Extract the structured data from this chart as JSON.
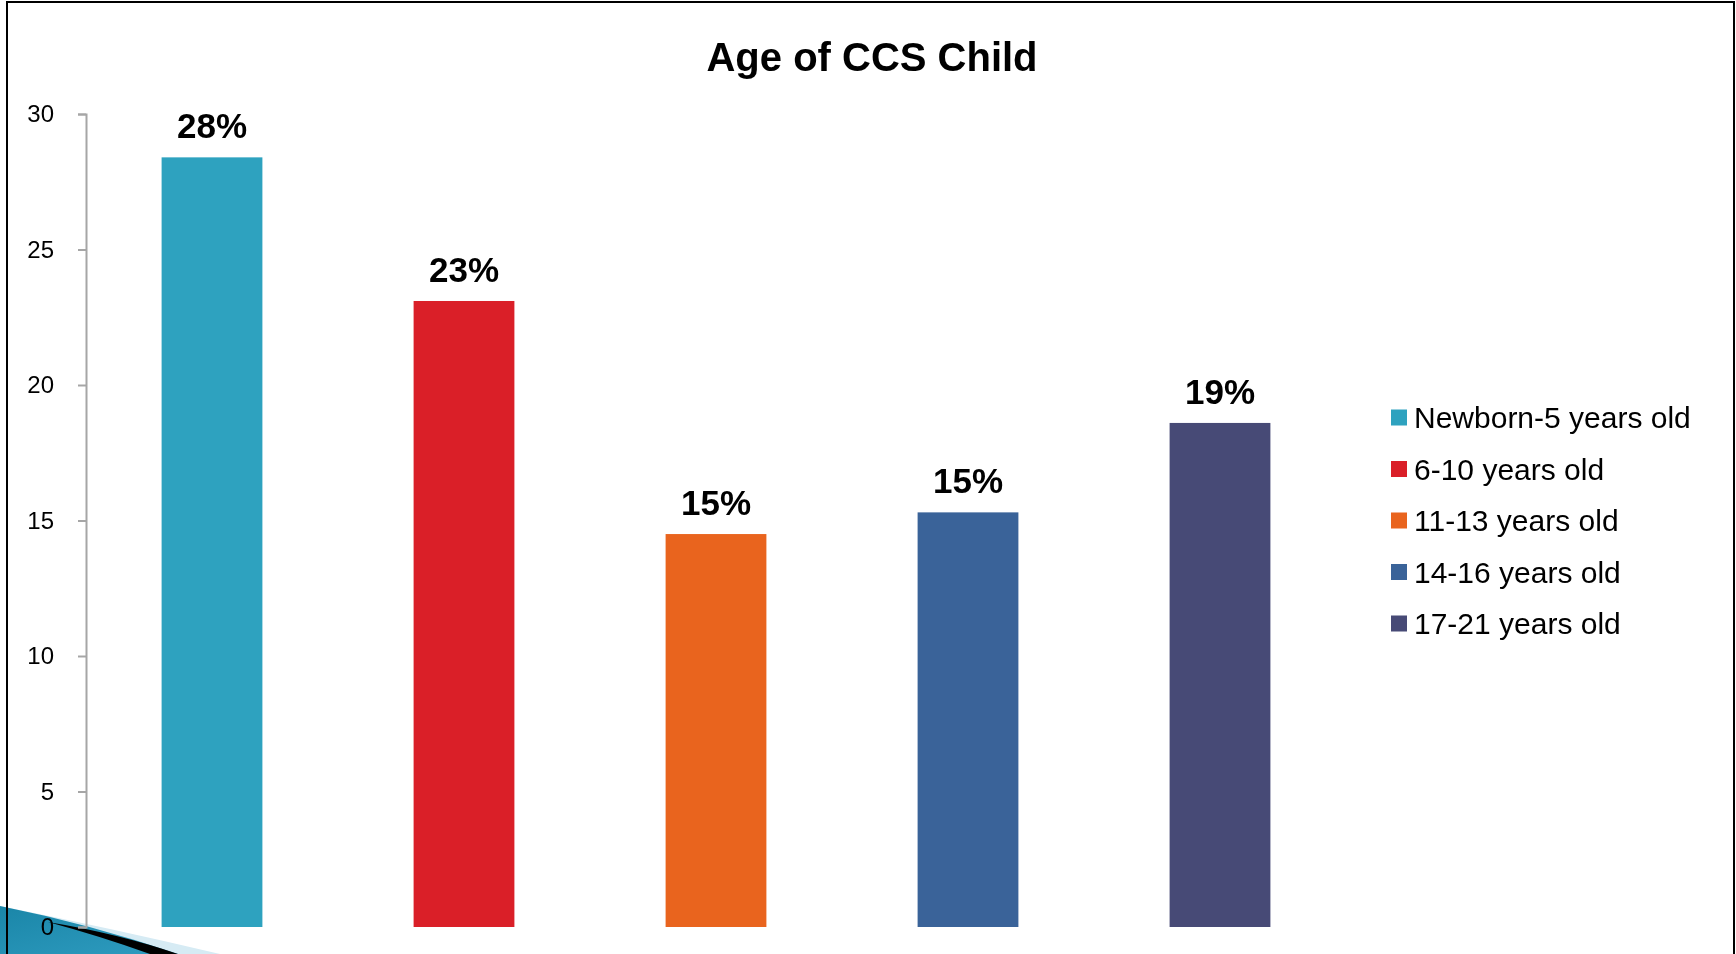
{
  "chart_data": {
    "type": "bar",
    "title": "Age of CCS Child",
    "categories": [
      null,
      null,
      null,
      null,
      null
    ],
    "stacked": true,
    "series": [
      {
        "name": "Newborn-5 years old",
        "color": "#2ea2bf",
        "values": [
          28.4,
          null,
          null,
          null,
          null
        ],
        "value_labels": [
          "28%",
          null,
          null,
          null,
          null
        ]
      },
      {
        "name": "6-10 years old",
        "color": "#da1f28",
        "values": [
          null,
          23.1,
          null,
          null,
          null
        ],
        "value_labels": [
          null,
          "23%",
          null,
          null,
          null
        ]
      },
      {
        "name": "11-13 years old",
        "color": "#e9641e",
        "values": [
          null,
          null,
          14.5,
          null,
          null
        ],
        "value_labels": [
          null,
          null,
          "15%",
          null,
          null
        ]
      },
      {
        "name": "14-16 years old",
        "color": "#3a6399",
        "values": [
          null,
          null,
          null,
          15.3,
          null
        ],
        "value_labels": [
          null,
          null,
          null,
          "15%",
          null
        ]
      },
      {
        "name": "17-21 years old",
        "color": "#474a76",
        "values": [
          null,
          null,
          null,
          null,
          18.6
        ],
        "value_labels": [
          null,
          null,
          null,
          null,
          "19%"
        ]
      }
    ],
    "ylim": [
      0,
      30
    ],
    "yticks": [
      0,
      5,
      10,
      15,
      20,
      25,
      30
    ],
    "legend": "right",
    "tick_labels": "y"
  }
}
